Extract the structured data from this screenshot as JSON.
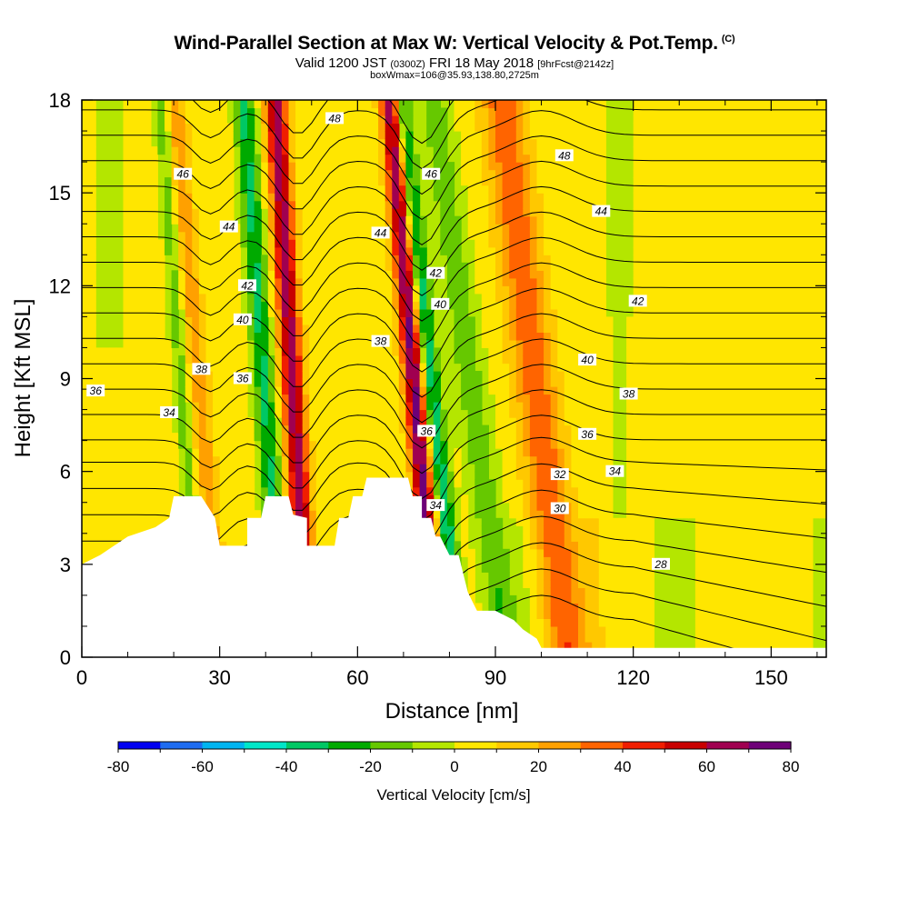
{
  "header": {
    "title": "Wind-Parallel Section at Max W: Vertical Velocity & Pot.Temp.",
    "copyright": "(C)",
    "valid_prefix": "Valid 1200 JST",
    "valid_utc": "(0300Z)",
    "valid_date": "FRI 18 May 2018",
    "forecast": "[9hrFcst@2142z]",
    "box_info": "boxWmax=106@35.93,138.80,2725m"
  },
  "chart_data": {
    "type": "heatmap",
    "xlabel": "Distance [nm]",
    "ylabel": "Height [Kft MSL]",
    "xlim": [
      0,
      162
    ],
    "ylim": [
      0,
      18
    ],
    "x_ticks": [
      0,
      30,
      60,
      90,
      120,
      150
    ],
    "y_ticks": [
      0,
      3,
      6,
      9,
      12,
      15,
      18
    ],
    "colorbar": {
      "label": "Vertical Velocity [cm/s]",
      "tick_labels": [
        "-80",
        "-60",
        "-40",
        "-20",
        "0",
        "20",
        "40",
        "60",
        "80"
      ],
      "colors": [
        "#0000f0",
        "#1e6cf0",
        "#00b4f0",
        "#00e6c8",
        "#00c864",
        "#00aa00",
        "#66c800",
        "#b4e600",
        "#ffe600",
        "#ffc800",
        "#ffa000",
        "#ff6400",
        "#f01e00",
        "#c80000",
        "#a00050",
        "#6e0078"
      ]
    },
    "updraft_bands": [
      {
        "x_center": 28,
        "w": 25
      },
      {
        "x_center": 47,
        "w": 65
      },
      {
        "x_center": 74,
        "w": 75
      },
      {
        "x_center": 102,
        "w": 40
      }
    ],
    "downdraft_bands": [
      {
        "x_center": 23,
        "w": -20
      },
      {
        "x_center": 44,
        "w": -40
      },
      {
        "x_center": 77,
        "w": -45
      },
      {
        "x_center": 88,
        "w": -20
      },
      {
        "x_center": 115,
        "w": -15
      }
    ],
    "terrain": [
      [
        0,
        3.0
      ],
      [
        4,
        3.3
      ],
      [
        7,
        3.6
      ],
      [
        10,
        3.9
      ],
      [
        16,
        4.2
      ],
      [
        19,
        4.5
      ],
      [
        20,
        5.2
      ],
      [
        26,
        5.2
      ],
      [
        29,
        4.5
      ],
      [
        30,
        3.6
      ],
      [
        36,
        3.6
      ],
      [
        36,
        4.5
      ],
      [
        39,
        4.5
      ],
      [
        40,
        5.2
      ],
      [
        45,
        5.2
      ],
      [
        46,
        4.6
      ],
      [
        49,
        4.5
      ],
      [
        49,
        3.6
      ],
      [
        55,
        3.6
      ],
      [
        56,
        4.5
      ],
      [
        58,
        4.5
      ],
      [
        59,
        5.2
      ],
      [
        61,
        5.2
      ],
      [
        62,
        5.8
      ],
      [
        71,
        5.8
      ],
      [
        72,
        5.2
      ],
      [
        74,
        5.2
      ],
      [
        74,
        4.5
      ],
      [
        76,
        4.5
      ],
      [
        77,
        3.9
      ],
      [
        78,
        3.9
      ],
      [
        80,
        3.3
      ],
      [
        82,
        3.3
      ],
      [
        83,
        2.7
      ],
      [
        84,
        2.1
      ],
      [
        85,
        1.8
      ],
      [
        86,
        1.5
      ],
      [
        90,
        1.5
      ],
      [
        94,
        1.2
      ],
      [
        96,
        0.9
      ],
      [
        99,
        0.6
      ],
      [
        100,
        0.3
      ],
      [
        102,
        0.3
      ],
      [
        162,
        0.3
      ]
    ],
    "theta_contours": [
      {
        "level": "28",
        "label_xy": [
          126,
          3.0
        ]
      },
      {
        "level": "30",
        "label_xy": [
          104,
          4.8
        ]
      },
      {
        "level": "32",
        "label_xy": [
          104,
          5.9
        ]
      },
      {
        "level": "34",
        "label_xy": [
          116,
          6.0
        ]
      },
      {
        "level": "34",
        "label_xy": [
          19,
          7.9
        ]
      },
      {
        "level": "34",
        "label_xy": [
          77,
          4.9
        ]
      },
      {
        "level": "36",
        "label_xy": [
          3,
          8.6
        ]
      },
      {
        "level": "36",
        "label_xy": [
          35,
          9.0
        ]
      },
      {
        "level": "36",
        "label_xy": [
          75,
          7.3
        ]
      },
      {
        "level": "36",
        "label_xy": [
          110,
          7.2
        ]
      },
      {
        "level": "38",
        "label_xy": [
          26,
          9.3
        ]
      },
      {
        "level": "38",
        "label_xy": [
          65,
          10.2
        ]
      },
      {
        "level": "38",
        "label_xy": [
          119,
          8.5
        ]
      },
      {
        "level": "40",
        "label_xy": [
          35,
          10.9
        ]
      },
      {
        "level": "40",
        "label_xy": [
          78,
          11.4
        ]
      },
      {
        "level": "40",
        "label_xy": [
          110,
          9.6
        ]
      },
      {
        "level": "42",
        "label_xy": [
          36,
          12.0
        ]
      },
      {
        "level": "42",
        "label_xy": [
          77,
          12.4
        ]
      },
      {
        "level": "42",
        "label_xy": [
          121,
          11.5
        ]
      },
      {
        "level": "44",
        "label_xy": [
          32,
          13.9
        ]
      },
      {
        "level": "44",
        "label_xy": [
          65,
          13.7
        ]
      },
      {
        "level": "44",
        "label_xy": [
          113,
          14.4
        ]
      },
      {
        "level": "46",
        "label_xy": [
          22,
          15.6
        ]
      },
      {
        "level": "46",
        "label_xy": [
          76,
          15.6
        ]
      },
      {
        "level": "48",
        "label_xy": [
          55,
          17.4
        ]
      },
      {
        "level": "48",
        "label_xy": [
          105,
          16.2
        ]
      }
    ]
  }
}
